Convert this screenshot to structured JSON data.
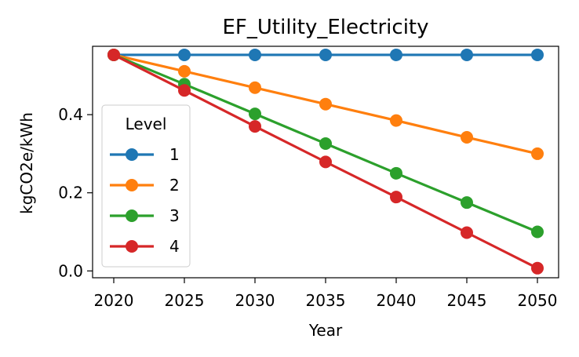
{
  "chart_data": {
    "type": "line",
    "title": "EF_Utility_Electricity",
    "xlabel": "Year",
    "ylabel": "kgCO2e/kWh",
    "x": [
      2020,
      2025,
      2030,
      2035,
      2040,
      2045,
      2050
    ],
    "xlim": [
      2018.5,
      2051.5
    ],
    "ylim": [
      -0.0175,
      0.575
    ],
    "xticks": [
      2020,
      2025,
      2030,
      2035,
      2040,
      2045,
      2050
    ],
    "yticks": [
      0.0,
      0.2,
      0.4
    ],
    "ytick_labels": [
      "0.0",
      "0.2",
      "0.4"
    ],
    "grid": false,
    "legend": {
      "title": "Level",
      "placement": "center-left"
    },
    "series": [
      {
        "name": "1",
        "color": "#1f77b4",
        "values": [
          0.553,
          0.553,
          0.553,
          0.553,
          0.553,
          0.553,
          0.553
        ]
      },
      {
        "name": "2",
        "color": "#ff7f0e",
        "values": [
          0.553,
          0.511,
          0.469,
          0.427,
          0.385,
          0.342,
          0.3
        ]
      },
      {
        "name": "3",
        "color": "#2ca02c",
        "values": [
          0.553,
          0.478,
          0.402,
          0.326,
          0.25,
          0.175,
          0.1
        ]
      },
      {
        "name": "4",
        "color": "#d62728",
        "values": [
          0.553,
          0.462,
          0.37,
          0.279,
          0.189,
          0.098,
          0.007
        ]
      }
    ]
  }
}
